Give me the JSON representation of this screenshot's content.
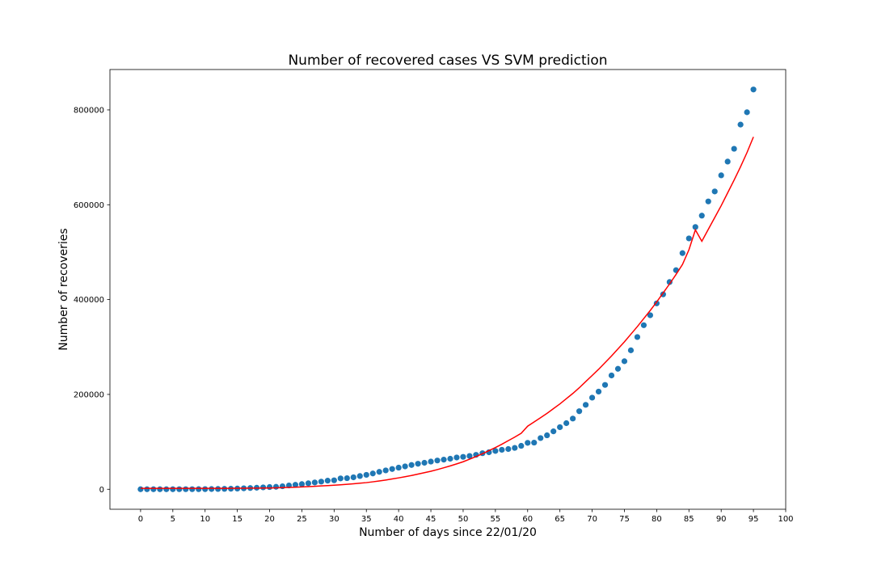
{
  "chart_data": {
    "type": "scatter",
    "title": "Number of recovered cases VS SVM prediction",
    "xlabel": "Number of days since 22/01/20",
    "ylabel": "Number of recoveries",
    "x": [
      0,
      1,
      2,
      3,
      4,
      5,
      6,
      7,
      8,
      9,
      10,
      11,
      12,
      13,
      14,
      15,
      16,
      17,
      18,
      19,
      20,
      21,
      22,
      23,
      24,
      25,
      26,
      27,
      28,
      29,
      30,
      31,
      32,
      33,
      34,
      35,
      36,
      37,
      38,
      39,
      40,
      41,
      42,
      43,
      44,
      45,
      46,
      47,
      48,
      49,
      50,
      51,
      52,
      53,
      54,
      55,
      56,
      57,
      58,
      59,
      60,
      61,
      62,
      63,
      64,
      65,
      66,
      67,
      68,
      69,
      70,
      71,
      72,
      73,
      74,
      75,
      76,
      77,
      78,
      79,
      80,
      81,
      82,
      83,
      84,
      85,
      86,
      87,
      88,
      89,
      90,
      91,
      92,
      93,
      94,
      95
    ],
    "series": [
      {
        "type": "scatter",
        "color": "#1f77b4",
        "values": [
          28,
          30,
          36,
          39,
          52,
          61,
          107,
          126,
          143,
          222,
          284,
          472,
          623,
          852,
          1124,
          1487,
          2011,
          2616,
          3244,
          3946,
          4683,
          5150,
          6295,
          8058,
          9395,
          10865,
          12583,
          14352,
          16121,
          18177,
          18890,
          22886,
          23394,
          25227,
          27905,
          30384,
          33277,
          36711,
          39782,
          42716,
          45602,
          48228,
          51170,
          53796,
          55865,
          58358,
          60694,
          62494,
          64404,
          67003,
          68324,
          70251,
          72624,
          76034,
          78088,
          80840,
          83207,
          84854,
          87256,
          91621,
          97899,
          98351,
          107990,
          113770,
          122150,
          130915,
          139415,
          149082,
          164566,
          178034,
          193177,
          206000,
          220000,
          240000,
          254000,
          270000,
          293000,
          321000,
          346000,
          367000,
          392000,
          411000,
          437000,
          462000,
          498000,
          529000,
          553000,
          577000,
          607000,
          628000,
          662000,
          691000,
          718000,
          769000,
          795000,
          843000
        ]
      },
      {
        "type": "line",
        "color": "#ff0000",
        "values": [
          2000,
          2000,
          2000,
          2000,
          2000,
          2000,
          2000,
          2000,
          2000,
          2000,
          2000,
          2000,
          2000,
          2000,
          2000,
          2100,
          2200,
          2300,
          2400,
          2500,
          2700,
          3000,
          3400,
          3900,
          4400,
          5000,
          5600,
          6300,
          7000,
          7700,
          8500,
          9500,
          10500,
          11600,
          12800,
          14000,
          15700,
          17500,
          19500,
          21700,
          24000,
          26500,
          29000,
          32000,
          35000,
          38000,
          41500,
          45300,
          49300,
          53500,
          58000,
          63500,
          69000,
          75000,
          81500,
          88000,
          95000,
          102500,
          110000,
          118000,
          133000,
          142000,
          151000,
          160000,
          170000,
          180000,
          191000,
          202000,
          214000,
          227000,
          240000,
          253000,
          267000,
          281000,
          296000,
          311000,
          327000,
          343000,
          360000,
          377000,
          395000,
          414000,
          433000,
          453000,
          474000,
          505000,
          547000,
          523000,
          548000,
          573000,
          598000,
          625000,
          652000,
          680000,
          710000,
          743000
        ]
      }
    ],
    "xlim": [
      -4.75,
      100
    ],
    "ylim": [
      -42150,
      885150
    ],
    "xticks": [
      0,
      5,
      10,
      15,
      20,
      25,
      30,
      35,
      40,
      45,
      50,
      55,
      60,
      65,
      70,
      75,
      80,
      85,
      90,
      95,
      100
    ],
    "yticks": [
      0,
      200000,
      400000,
      600000,
      800000
    ]
  }
}
